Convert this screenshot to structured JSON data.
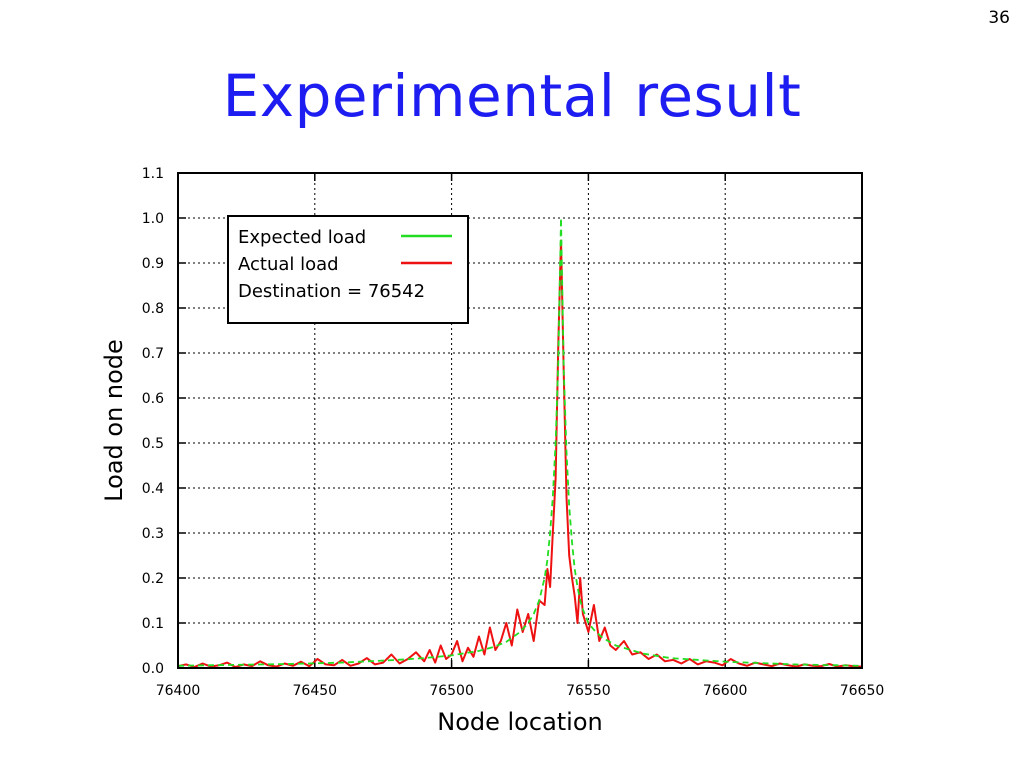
{
  "slide": {
    "number": "36",
    "title": "Experimental result"
  },
  "chart_data": {
    "type": "line",
    "xlabel": "Node location",
    "ylabel": "Load on node",
    "xlim": [
      76400,
      76650
    ],
    "ylim": [
      0.0,
      1.1
    ],
    "x_ticks": [
      76400,
      76450,
      76500,
      76550,
      76600,
      76650
    ],
    "y_ticks": [
      0.0,
      0.1,
      0.2,
      0.3,
      0.4,
      0.5,
      0.6,
      0.7,
      0.8,
      0.9,
      1.0,
      1.1
    ],
    "grid": true,
    "legend": {
      "position": "top-left",
      "entries": [
        "Expected load",
        "Actual load",
        "Destination = 76542"
      ]
    },
    "series": [
      {
        "name": "Expected load",
        "color": "#22dd22",
        "style": "dashed",
        "x": [
          76400,
          76420,
          76440,
          76460,
          76480,
          76490,
          76500,
          76510,
          76515,
          76520,
          76525,
          76528,
          76530,
          76532,
          76534,
          76535,
          76536,
          76537,
          76538,
          76539,
          76540,
          76541,
          76542,
          76543,
          76544,
          76545,
          76546,
          76547,
          76548,
          76550,
          76552,
          76555,
          76560,
          76570,
          76580,
          76600,
          76625,
          76650
        ],
        "y": [
          0.005,
          0.007,
          0.009,
          0.012,
          0.018,
          0.022,
          0.028,
          0.038,
          0.046,
          0.058,
          0.08,
          0.1,
          0.12,
          0.15,
          0.2,
          0.24,
          0.3,
          0.38,
          0.5,
          0.68,
          1.0,
          0.66,
          0.48,
          0.36,
          0.28,
          0.22,
          0.18,
          0.15,
          0.13,
          0.1,
          0.085,
          0.068,
          0.05,
          0.032,
          0.022,
          0.014,
          0.008,
          0.005
        ]
      },
      {
        "name": "Actual load",
        "color": "#ee1111",
        "style": "solid",
        "x": [
          76400,
          76403,
          76406,
          76409,
          76412,
          76415,
          76418,
          76421,
          76424,
          76427,
          76430,
          76433,
          76436,
          76439,
          76442,
          76445,
          76448,
          76451,
          76454,
          76457,
          76460,
          76463,
          76466,
          76469,
          76472,
          76475,
          76478,
          76481,
          76484,
          76487,
          76490,
          76492,
          76494,
          76496,
          76498,
          76500,
          76502,
          76504,
          76506,
          76508,
          76510,
          76512,
          76514,
          76516,
          76518,
          76520,
          76522,
          76524,
          76526,
          76528,
          76530,
          76532,
          76534,
          76535,
          76536,
          76537,
          76538,
          76539,
          76540,
          76541,
          76542,
          76543,
          76544,
          76545,
          76546,
          76547,
          76548,
          76550,
          76552,
          76554,
          76556,
          76558,
          76560,
          76563,
          76566,
          76569,
          76572,
          76575,
          76578,
          76581,
          76584,
          76587,
          76590,
          76593,
          76596,
          76599,
          76602,
          76605,
          76608,
          76611,
          76614,
          76617,
          76620,
          76623,
          76626,
          76629,
          76632,
          76635,
          76638,
          76641,
          76644,
          76647,
          76650
        ],
        "y": [
          0.004,
          0.008,
          0.002,
          0.01,
          0.003,
          0.006,
          0.012,
          0.002,
          0.008,
          0.004,
          0.015,
          0.006,
          0.003,
          0.01,
          0.005,
          0.014,
          0.004,
          0.02,
          0.008,
          0.006,
          0.018,
          0.005,
          0.01,
          0.022,
          0.008,
          0.012,
          0.03,
          0.01,
          0.02,
          0.035,
          0.015,
          0.04,
          0.012,
          0.05,
          0.02,
          0.03,
          0.06,
          0.015,
          0.045,
          0.025,
          0.07,
          0.03,
          0.09,
          0.04,
          0.06,
          0.1,
          0.05,
          0.13,
          0.08,
          0.12,
          0.06,
          0.15,
          0.14,
          0.22,
          0.18,
          0.3,
          0.42,
          0.72,
          0.95,
          0.65,
          0.38,
          0.25,
          0.2,
          0.16,
          0.1,
          0.2,
          0.12,
          0.08,
          0.14,
          0.06,
          0.09,
          0.05,
          0.04,
          0.06,
          0.03,
          0.035,
          0.02,
          0.03,
          0.015,
          0.018,
          0.01,
          0.02,
          0.008,
          0.015,
          0.012,
          0.006,
          0.02,
          0.01,
          0.005,
          0.012,
          0.008,
          0.004,
          0.01,
          0.006,
          0.003,
          0.008,
          0.005,
          0.004,
          0.009,
          0.003,
          0.006,
          0.004,
          0.003
        ]
      }
    ]
  }
}
